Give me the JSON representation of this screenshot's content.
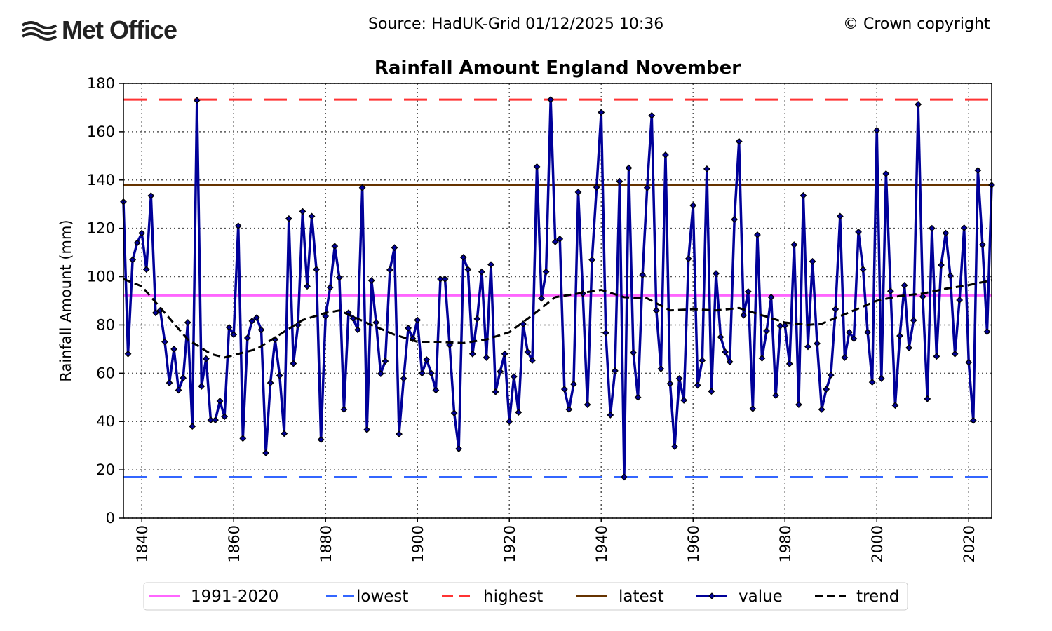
{
  "header": {
    "logo_text": "Met Office",
    "source": "Source: HadUK-Grid 01/12/2025 10:36",
    "copyright": "© Crown copyright"
  },
  "chart_data": {
    "type": "line",
    "title": "Rainfall Amount England November",
    "xlabel": "",
    "ylabel": "Rainfall Amount (mm)",
    "xlim": [
      1836,
      2025
    ],
    "ylim": [
      0,
      180
    ],
    "xticks": [
      1840,
      1860,
      1880,
      1900,
      1920,
      1940,
      1960,
      1980,
      2000,
      2020
    ],
    "yticks": [
      0,
      20,
      40,
      60,
      80,
      100,
      120,
      140,
      160,
      180
    ],
    "grid": true,
    "legend_placement": "bottom-center",
    "colors": {
      "avg": "#ff66ff",
      "lowest": "#3366ff",
      "highest": "#ff3333",
      "latest": "#663300",
      "value": "#000099",
      "trend": "#000000"
    },
    "reference_lines": {
      "avg_1991_2020": 92.2,
      "lowest": 17.0,
      "highest": 173.3,
      "latest": 137.9
    },
    "legend": [
      "1991-2020",
      "lowest",
      "highest",
      "latest",
      "value",
      "trend"
    ],
    "start_year": 1836,
    "values": [
      131,
      68,
      107,
      114,
      118,
      103,
      133.5,
      85,
      86,
      73,
      56,
      70,
      53,
      58,
      81,
      38,
      173,
      54.6,
      66,
      40.6,
      40.6,
      48.5,
      42,
      79,
      76,
      121,
      33,
      74.6,
      81.6,
      83,
      78,
      27,
      56,
      74,
      59,
      35,
      124,
      64,
      80,
      127,
      96,
      125,
      103,
      32.5,
      83.6,
      95.5,
      112.6,
      99.6,
      45,
      85,
      82.7,
      78,
      136.8,
      36.6,
      98.4,
      81,
      59.8,
      65,
      102.8,
      112,
      34.8,
      57.8,
      78.7,
      74.3,
      82,
      60,
      65.6,
      60,
      53,
      99,
      99,
      71.7,
      43.5,
      28.7,
      108,
      103,
      68,
      82.5,
      102,
      66.5,
      105,
      52.3,
      60.7,
      68,
      40,
      58.6,
      43.8,
      80.4,
      68.8,
      65.3,
      145.5,
      91,
      102,
      173.3,
      114.4,
      115.6,
      53.4,
      45,
      55.5,
      135,
      93,
      47,
      107,
      137,
      168,
      76.7,
      42.7,
      61,
      139.4,
      17,
      145,
      68.5,
      50,
      100.7,
      136.8,
      166.7,
      86,
      61.8,
      150.4,
      55.7,
      29.6,
      57.8,
      48.8,
      107.4,
      129.5,
      55,
      65.3,
      144.6,
      52.5,
      101.3,
      75,
      68.8,
      64.7,
      123.7,
      156,
      84,
      93.8,
      45.3,
      117.3,
      66.2,
      77.5,
      91.5,
      50.8,
      79.6,
      79.8,
      63.9,
      113.2,
      47,
      133.6,
      71,
      106.3,
      72.3,
      45,
      53.4,
      59.2,
      86.5,
      125,
      66.5,
      77,
      74.3,
      118.5,
      103,
      77,
      56.3,
      160.6,
      57.8,
      142.6,
      94,
      46.7,
      75.5,
      96.4,
      70.5,
      81.9,
      171.3,
      91.7,
      49.4,
      120,
      67,
      104.8,
      118,
      100.4,
      68,
      90.3,
      120.2,
      64.5,
      40.4,
      144,
      113.2,
      77.2,
      137.9
    ],
    "trend": {
      "x": [
        1836,
        1840,
        1845,
        1850,
        1855,
        1858,
        1865,
        1870,
        1875,
        1880,
        1883,
        1890,
        1895,
        1900,
        1905,
        1910,
        1915,
        1920,
        1925,
        1930,
        1935,
        1940,
        1945,
        1950,
        1955,
        1960,
        1965,
        1970,
        1975,
        1980,
        1985,
        1988,
        1995,
        2000,
        2005,
        2010,
        2015,
        2020,
        2025
      ],
      "y": [
        99,
        96,
        85,
        74,
        68,
        66.5,
        70,
        76,
        82,
        85,
        86,
        80,
        76,
        73,
        73,
        72.5,
        74,
        77,
        84,
        91.5,
        93,
        94.5,
        91.5,
        91,
        86,
        86.5,
        86,
        87,
        84,
        81,
        80,
        80.5,
        86,
        90,
        92,
        93,
        95,
        96.5,
        98.5
      ]
    }
  }
}
